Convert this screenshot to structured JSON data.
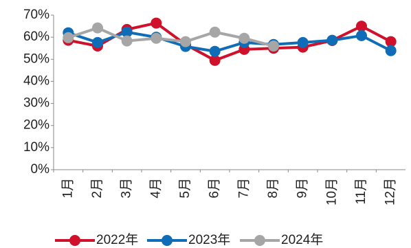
{
  "chart_data": {
    "type": "line",
    "categories": [
      "1月",
      "2月",
      "3月",
      "4月",
      "5月",
      "6月",
      "7月",
      "8月",
      "9月",
      "10月",
      "11月",
      "12月"
    ],
    "series": [
      {
        "name": "2022年",
        "color": "#d0112b",
        "values": [
          58.6,
          56,
          63.5,
          66.4,
          56.7,
          49.5,
          54.5,
          55,
          55.5,
          58.5,
          65,
          58
        ]
      },
      {
        "name": "2023年",
        "color": "#0f6cb6",
        "values": [
          62,
          57.6,
          62.3,
          60,
          55.8,
          53.6,
          57.6,
          56.7,
          57.6,
          58.6,
          60.7,
          53.9
        ]
      },
      {
        "name": "2024年",
        "color": "#a6a6a6",
        "values": [
          59.8,
          64.2,
          58.3,
          59.5,
          58,
          62.3,
          59.5,
          56,
          null,
          null,
          null,
          null
        ]
      }
    ],
    "ylim": [
      0,
      70
    ],
    "yticks": [
      {
        "value": 0,
        "label": "0%"
      },
      {
        "value": 10,
        "label": "10%"
      },
      {
        "value": 20,
        "label": "20%"
      },
      {
        "value": 30,
        "label": "30%"
      },
      {
        "value": 40,
        "label": "40%"
      },
      {
        "value": 50,
        "label": "50%"
      },
      {
        "value": 60,
        "label": "60%"
      },
      {
        "value": 70,
        "label": "70%"
      }
    ],
    "grid": false
  }
}
